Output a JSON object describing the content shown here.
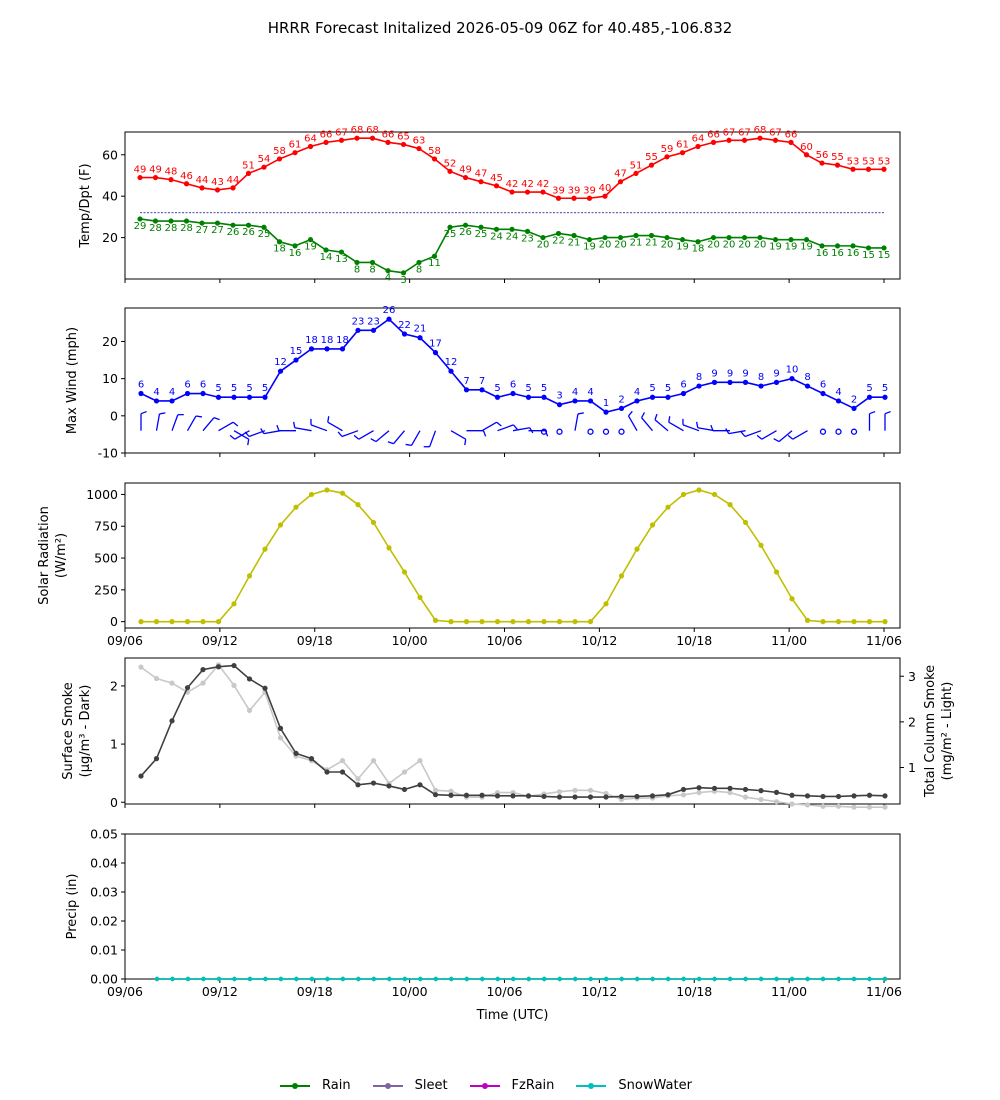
{
  "title": "HRRR Forecast Initalized 2026-05-09 06Z for 40.485,-106.832",
  "time_ticks": [
    "09/06",
    "09/12",
    "09/18",
    "10/00",
    "10/06",
    "10/12",
    "10/18",
    "11/00",
    "11/06"
  ],
  "legend": [
    {
      "label": "Rain",
      "color": "#008000"
    },
    {
      "label": "Sleet",
      "color": "#8064a2"
    },
    {
      "label": "FzRain",
      "color": "#bf00bf"
    },
    {
      "label": "SnowWater",
      "color": "#00bfbf"
    }
  ],
  "chart_data": [
    {
      "type": "line",
      "x_label": "",
      "ylabel": "Temp/Dpt (F)",
      "ylim": [
        0,
        71
      ],
      "yticks": [
        20,
        40,
        60
      ],
      "x_hours": [
        7,
        8,
        9,
        10,
        11,
        12,
        13,
        14,
        15,
        16,
        17,
        18,
        19,
        20,
        21,
        22,
        23,
        24,
        25,
        26,
        27,
        28,
        29,
        30,
        31,
        32,
        33,
        34,
        35,
        36,
        37,
        38,
        39,
        40,
        41,
        42,
        43,
        44,
        45,
        46,
        47,
        48,
        49,
        50,
        51,
        52,
        53,
        54,
        55
      ],
      "reference_line": 32,
      "series": [
        {
          "name": "Temp",
          "color": "#ff0000",
          "values": [
            49,
            49,
            48,
            46,
            44,
            43,
            44,
            51,
            54,
            58,
            61,
            64,
            66,
            67,
            68,
            68,
            66,
            65,
            63,
            58,
            52,
            49,
            47,
            45,
            42,
            42,
            42,
            39,
            39,
            39,
            40,
            47,
            51,
            55,
            59,
            61,
            64,
            66,
            67,
            67,
            68,
            67,
            66,
            60,
            56,
            55,
            53,
            53,
            53
          ]
        },
        {
          "name": "Dewpoint",
          "color": "#008000",
          "values": [
            29,
            28,
            28,
            28,
            27,
            27,
            26,
            26,
            25,
            18,
            16,
            19,
            14,
            13,
            8,
            8,
            4,
            3,
            8,
            11,
            25,
            26,
            25,
            24,
            24,
            23,
            20,
            22,
            21,
            19,
            20,
            20,
            21,
            21,
            20,
            19,
            18,
            20,
            20,
            20,
            20,
            19,
            19,
            19,
            16,
            16,
            16,
            15,
            15
          ]
        }
      ]
    },
    {
      "type": "line",
      "ylabel": "Max Wind (mph)",
      "ylim": [
        -10,
        29
      ],
      "yticks": [
        -10,
        0,
        10,
        20
      ],
      "x_hours": [
        7,
        8,
        9,
        10,
        11,
        12,
        13,
        14,
        15,
        16,
        17,
        18,
        19,
        20,
        21,
        22,
        23,
        24,
        25,
        26,
        27,
        28,
        29,
        30,
        31,
        32,
        33,
        34,
        35,
        36,
        37,
        38,
        39,
        40,
        41,
        42,
        43,
        44,
        45,
        46,
        47,
        48,
        49,
        50,
        51,
        52,
        53,
        54,
        55
      ],
      "series": [
        {
          "name": "Max Wind",
          "color": "#0000ff",
          "values": [
            6,
            4,
            4,
            6,
            6,
            5,
            5,
            5,
            5,
            12,
            15,
            18,
            18,
            18,
            23,
            23,
            26,
            22,
            21,
            17,
            12,
            7,
            7,
            5,
            6,
            5,
            5,
            3,
            4,
            4,
            1,
            2,
            4,
            5,
            5,
            6,
            8,
            9,
            9,
            9,
            8,
            9,
            10,
            8,
            6,
            4,
            2,
            5,
            5
          ]
        }
      ],
      "barb_dirs_deg": [
        0,
        10,
        20,
        30,
        40,
        60,
        120,
        240,
        250,
        260,
        270,
        280,
        290,
        300,
        250,
        240,
        230,
        220,
        210,
        200,
        120,
        90,
        60,
        70,
        80,
        90,
        null,
        null,
        10,
        null,
        null,
        null,
        330,
        320,
        310,
        300,
        290,
        280,
        270,
        260,
        250,
        240,
        230,
        240,
        null,
        null,
        null,
        0,
        0
      ]
    },
    {
      "type": "line",
      "ylabel": "Solar Radiation (W/m²)",
      "ylim": [
        -50,
        1090
      ],
      "yticks": [
        0,
        250,
        500,
        750,
        1000
      ],
      "x_hours": [
        7,
        8,
        9,
        10,
        11,
        12,
        13,
        14,
        15,
        16,
        17,
        18,
        19,
        20,
        21,
        22,
        23,
        24,
        25,
        26,
        27,
        28,
        29,
        30,
        31,
        32,
        33,
        34,
        35,
        36,
        37,
        38,
        39,
        40,
        41,
        42,
        43,
        44,
        45,
        46,
        47,
        48,
        49,
        50,
        51,
        52,
        53,
        54,
        55
      ],
      "series": [
        {
          "name": "Solar Radiation",
          "color": "#bfbf00",
          "values": [
            0,
            0,
            0,
            0,
            0,
            0,
            140,
            360,
            570,
            760,
            900,
            1000,
            1035,
            1010,
            920,
            780,
            580,
            390,
            190,
            10,
            0,
            0,
            0,
            0,
            0,
            0,
            0,
            0,
            0,
            0,
            140,
            360,
            570,
            760,
            900,
            1000,
            1035,
            1000,
            920,
            780,
            600,
            390,
            180,
            10,
            0,
            0,
            0,
            0,
            0
          ]
        }
      ]
    },
    {
      "type": "line",
      "ylabel": "Surface Smoke (μg/m³ - Dark)",
      "ylabel2": "Total Column Smoke (mg/m² - Light)",
      "ylim": [
        -0.03,
        2.48
      ],
      "yticks": [
        0,
        1,
        2
      ],
      "y2lim": [
        0.2,
        3.4
      ],
      "y2ticks": [
        1,
        2,
        3
      ],
      "x_hours": [
        7,
        8,
        9,
        10,
        11,
        12,
        13,
        14,
        15,
        16,
        17,
        18,
        19,
        20,
        21,
        22,
        23,
        24,
        25,
        26,
        27,
        28,
        29,
        30,
        31,
        32,
        33,
        34,
        35,
        36,
        37,
        38,
        39,
        40,
        41,
        42,
        43,
        44,
        45,
        46,
        47,
        48,
        49,
        50,
        51,
        52,
        53,
        54,
        55
      ],
      "series": [
        {
          "name": "Surface Smoke",
          "color": "#404040",
          "axis": "left",
          "values": [
            0.45,
            0.75,
            1.4,
            1.97,
            2.28,
            2.33,
            2.35,
            2.12,
            1.96,
            1.27,
            0.84,
            0.75,
            0.52,
            0.52,
            0.3,
            0.33,
            0.28,
            0.22,
            0.3,
            0.13,
            0.12,
            0.12,
            0.12,
            0.11,
            0.11,
            0.11,
            0.1,
            0.09,
            0.09,
            0.09,
            0.09,
            0.1,
            0.1,
            0.11,
            0.13,
            0.22,
            0.25,
            0.24,
            0.24,
            0.22,
            0.2,
            0.17,
            0.12,
            0.11,
            0.1,
            0.1,
            0.11,
            0.12,
            0.11
          ]
        },
        {
          "name": "Total Column Smoke",
          "color": "#c8c8c8",
          "axis": "right",
          "values": [
            3.2,
            2.95,
            2.85,
            2.65,
            2.85,
            3.25,
            2.8,
            2.25,
            2.65,
            1.65,
            1.25,
            1.15,
            0.95,
            1.15,
            0.75,
            1.15,
            0.65,
            0.9,
            1.15,
            0.5,
            0.48,
            0.35,
            0.35,
            0.45,
            0.45,
            0.37,
            0.42,
            0.47,
            0.5,
            0.5,
            0.43,
            0.3,
            0.33,
            0.33,
            0.38,
            0.4,
            0.45,
            0.48,
            0.45,
            0.35,
            0.3,
            0.25,
            0.2,
            0.18,
            0.15,
            0.15,
            0.13,
            0.13,
            0.13
          ]
        }
      ]
    },
    {
      "type": "line",
      "ylabel": "Precip (in)",
      "xlabel": "Time (UTC)",
      "ylim": [
        0,
        0.05
      ],
      "yticks": [
        "0.00",
        "0.01",
        "0.02",
        "0.03",
        "0.04",
        "0.05"
      ],
      "x_hours": [
        8,
        9,
        10,
        11,
        12,
        13,
        14,
        15,
        16,
        17,
        18,
        19,
        20,
        21,
        22,
        23,
        24,
        25,
        26,
        27,
        28,
        29,
        30,
        31,
        32,
        33,
        34,
        35,
        36,
        37,
        38,
        39,
        40,
        41,
        42,
        43,
        44,
        45,
        46,
        47,
        48,
        49,
        50,
        51,
        52,
        53,
        54,
        55
      ],
      "series": [
        {
          "name": "Rain",
          "color": "#008000",
          "values": [
            0,
            0,
            0,
            0,
            0,
            0,
            0,
            0,
            0,
            0,
            0,
            0,
            0,
            0,
            0,
            0,
            0,
            0,
            0,
            0,
            0,
            0,
            0,
            0,
            0,
            0,
            0,
            0,
            0,
            0,
            0,
            0,
            0,
            0,
            0,
            0,
            0,
            0,
            0,
            0,
            0,
            0,
            0,
            0,
            0,
            0,
            0,
            0
          ]
        },
        {
          "name": "SnowWater",
          "color": "#00bfbf",
          "values": [
            0,
            0,
            0,
            0,
            0,
            0,
            0,
            0,
            0,
            0,
            0,
            0,
            0,
            0,
            0,
            0,
            0,
            0,
            0,
            0,
            0,
            0,
            0,
            0,
            0,
            0,
            0,
            0,
            0,
            0,
            0,
            0,
            0,
            0,
            0,
            0,
            0,
            0,
            0,
            0,
            0,
            0,
            0,
            0,
            0,
            0,
            0,
            0
          ]
        }
      ]
    }
  ]
}
